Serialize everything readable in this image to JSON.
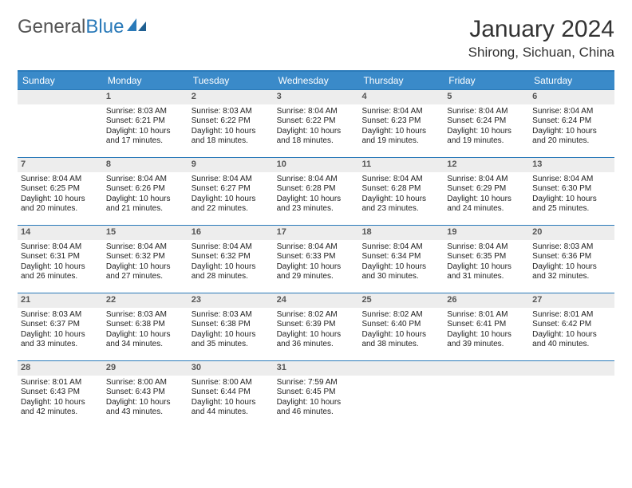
{
  "logo": {
    "text1": "General",
    "text2": "Blue"
  },
  "title": "January 2024",
  "location": "Shirong, Sichuan, China",
  "colors": {
    "header_bg": "#3a8ac9",
    "border": "#2a7ab9",
    "daynum_bg": "#ededed",
    "text": "#333333"
  },
  "day_names": [
    "Sunday",
    "Monday",
    "Tuesday",
    "Wednesday",
    "Thursday",
    "Friday",
    "Saturday"
  ],
  "weeks": [
    [
      {
        "n": "",
        "sr": "",
        "ss": "",
        "dl": ""
      },
      {
        "n": "1",
        "sr": "Sunrise: 8:03 AM",
        "ss": "Sunset: 6:21 PM",
        "dl": "Daylight: 10 hours and 17 minutes."
      },
      {
        "n": "2",
        "sr": "Sunrise: 8:03 AM",
        "ss": "Sunset: 6:22 PM",
        "dl": "Daylight: 10 hours and 18 minutes."
      },
      {
        "n": "3",
        "sr": "Sunrise: 8:04 AM",
        "ss": "Sunset: 6:22 PM",
        "dl": "Daylight: 10 hours and 18 minutes."
      },
      {
        "n": "4",
        "sr": "Sunrise: 8:04 AM",
        "ss": "Sunset: 6:23 PM",
        "dl": "Daylight: 10 hours and 19 minutes."
      },
      {
        "n": "5",
        "sr": "Sunrise: 8:04 AM",
        "ss": "Sunset: 6:24 PM",
        "dl": "Daylight: 10 hours and 19 minutes."
      },
      {
        "n": "6",
        "sr": "Sunrise: 8:04 AM",
        "ss": "Sunset: 6:24 PM",
        "dl": "Daylight: 10 hours and 20 minutes."
      }
    ],
    [
      {
        "n": "7",
        "sr": "Sunrise: 8:04 AM",
        "ss": "Sunset: 6:25 PM",
        "dl": "Daylight: 10 hours and 20 minutes."
      },
      {
        "n": "8",
        "sr": "Sunrise: 8:04 AM",
        "ss": "Sunset: 6:26 PM",
        "dl": "Daylight: 10 hours and 21 minutes."
      },
      {
        "n": "9",
        "sr": "Sunrise: 8:04 AM",
        "ss": "Sunset: 6:27 PM",
        "dl": "Daylight: 10 hours and 22 minutes."
      },
      {
        "n": "10",
        "sr": "Sunrise: 8:04 AM",
        "ss": "Sunset: 6:28 PM",
        "dl": "Daylight: 10 hours and 23 minutes."
      },
      {
        "n": "11",
        "sr": "Sunrise: 8:04 AM",
        "ss": "Sunset: 6:28 PM",
        "dl": "Daylight: 10 hours and 23 minutes."
      },
      {
        "n": "12",
        "sr": "Sunrise: 8:04 AM",
        "ss": "Sunset: 6:29 PM",
        "dl": "Daylight: 10 hours and 24 minutes."
      },
      {
        "n": "13",
        "sr": "Sunrise: 8:04 AM",
        "ss": "Sunset: 6:30 PM",
        "dl": "Daylight: 10 hours and 25 minutes."
      }
    ],
    [
      {
        "n": "14",
        "sr": "Sunrise: 8:04 AM",
        "ss": "Sunset: 6:31 PM",
        "dl": "Daylight: 10 hours and 26 minutes."
      },
      {
        "n": "15",
        "sr": "Sunrise: 8:04 AM",
        "ss": "Sunset: 6:32 PM",
        "dl": "Daylight: 10 hours and 27 minutes."
      },
      {
        "n": "16",
        "sr": "Sunrise: 8:04 AM",
        "ss": "Sunset: 6:32 PM",
        "dl": "Daylight: 10 hours and 28 minutes."
      },
      {
        "n": "17",
        "sr": "Sunrise: 8:04 AM",
        "ss": "Sunset: 6:33 PM",
        "dl": "Daylight: 10 hours and 29 minutes."
      },
      {
        "n": "18",
        "sr": "Sunrise: 8:04 AM",
        "ss": "Sunset: 6:34 PM",
        "dl": "Daylight: 10 hours and 30 minutes."
      },
      {
        "n": "19",
        "sr": "Sunrise: 8:04 AM",
        "ss": "Sunset: 6:35 PM",
        "dl": "Daylight: 10 hours and 31 minutes."
      },
      {
        "n": "20",
        "sr": "Sunrise: 8:03 AM",
        "ss": "Sunset: 6:36 PM",
        "dl": "Daylight: 10 hours and 32 minutes."
      }
    ],
    [
      {
        "n": "21",
        "sr": "Sunrise: 8:03 AM",
        "ss": "Sunset: 6:37 PM",
        "dl": "Daylight: 10 hours and 33 minutes."
      },
      {
        "n": "22",
        "sr": "Sunrise: 8:03 AM",
        "ss": "Sunset: 6:38 PM",
        "dl": "Daylight: 10 hours and 34 minutes."
      },
      {
        "n": "23",
        "sr": "Sunrise: 8:03 AM",
        "ss": "Sunset: 6:38 PM",
        "dl": "Daylight: 10 hours and 35 minutes."
      },
      {
        "n": "24",
        "sr": "Sunrise: 8:02 AM",
        "ss": "Sunset: 6:39 PM",
        "dl": "Daylight: 10 hours and 36 minutes."
      },
      {
        "n": "25",
        "sr": "Sunrise: 8:02 AM",
        "ss": "Sunset: 6:40 PM",
        "dl": "Daylight: 10 hours and 38 minutes."
      },
      {
        "n": "26",
        "sr": "Sunrise: 8:01 AM",
        "ss": "Sunset: 6:41 PM",
        "dl": "Daylight: 10 hours and 39 minutes."
      },
      {
        "n": "27",
        "sr": "Sunrise: 8:01 AM",
        "ss": "Sunset: 6:42 PM",
        "dl": "Daylight: 10 hours and 40 minutes."
      }
    ],
    [
      {
        "n": "28",
        "sr": "Sunrise: 8:01 AM",
        "ss": "Sunset: 6:43 PM",
        "dl": "Daylight: 10 hours and 42 minutes."
      },
      {
        "n": "29",
        "sr": "Sunrise: 8:00 AM",
        "ss": "Sunset: 6:43 PM",
        "dl": "Daylight: 10 hours and 43 minutes."
      },
      {
        "n": "30",
        "sr": "Sunrise: 8:00 AM",
        "ss": "Sunset: 6:44 PM",
        "dl": "Daylight: 10 hours and 44 minutes."
      },
      {
        "n": "31",
        "sr": "Sunrise: 7:59 AM",
        "ss": "Sunset: 6:45 PM",
        "dl": "Daylight: 10 hours and 46 minutes."
      },
      {
        "n": "",
        "sr": "",
        "ss": "",
        "dl": ""
      },
      {
        "n": "",
        "sr": "",
        "ss": "",
        "dl": ""
      },
      {
        "n": "",
        "sr": "",
        "ss": "",
        "dl": ""
      }
    ]
  ]
}
